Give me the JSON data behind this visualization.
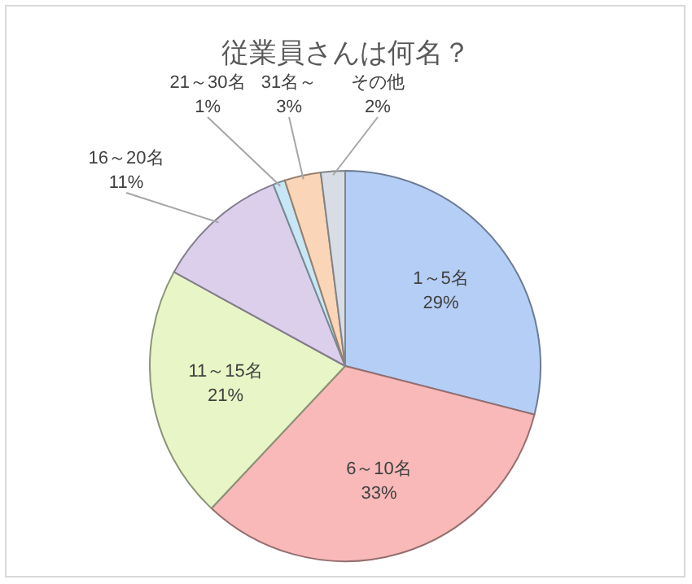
{
  "chart_data": {
    "type": "pie",
    "title": "従業員さんは何名？",
    "categories": [
      "1～5名",
      "6～10名",
      "11～15名",
      "16～20名",
      "21～30名",
      "31名～",
      "その他"
    ],
    "values": [
      29,
      33,
      21,
      11,
      1,
      3,
      2
    ],
    "value_labels": [
      "29%",
      "33%",
      "21%",
      "11%",
      "1%",
      "3%",
      "2%"
    ],
    "colors": [
      "#b5cef6",
      "#f9b9b9",
      "#e8f5c6",
      "#dccfec",
      "#c7e7f6",
      "#fbd5b8",
      "#d8dde5"
    ]
  }
}
